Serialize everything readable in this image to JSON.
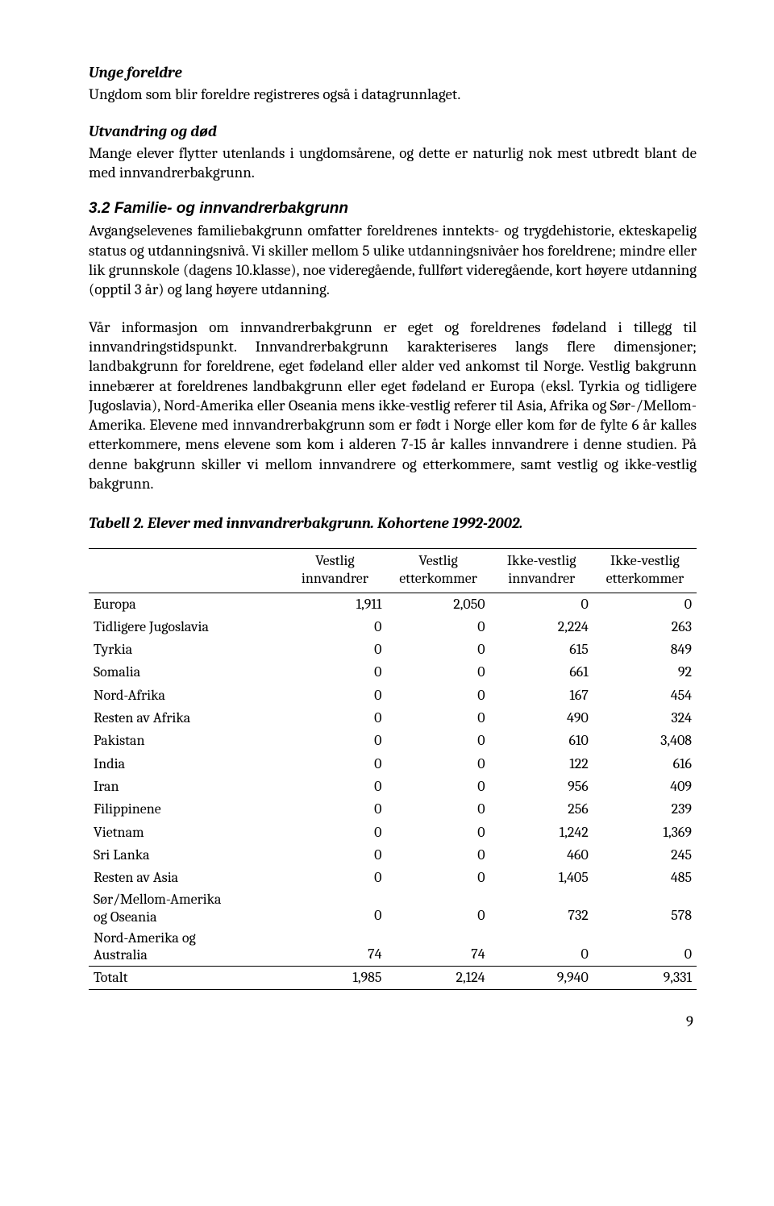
{
  "sections": {
    "h1": "Unge foreldre",
    "p1": "Ungdom som blir foreldre registreres også i datagrunnlaget.",
    "h2": "Utvandring og død",
    "p2": "Mange elever flytter utenlands i ungdomsårene, og dette er naturlig nok mest utbredt blant de med innvandrerbakgrunn.",
    "h3": "3.2 Familie- og innvandrerbakgrunn",
    "p3": "Avgangselevenes familiebakgrunn omfatter foreldrenes inntekts- og trygdehistorie, ekteskapelig status og utdanningsnivå. Vi skiller mellom 5 ulike utdanningsnivåer hos foreldrene; mindre eller lik grunnskole (dagens 10.klasse), noe videregående, fullført videregående, kort høyere utdanning (opptil 3 år) og lang høyere utdanning.",
    "p4": "Vår informasjon om innvandrerbakgrunn er eget og foreldrenes fødeland i tillegg til innvandringstidspunkt. Innvandrerbakgrunn karakteriseres langs flere dimensjoner; landbakgrunn for foreldrene, eget fødeland eller alder ved ankomst til Norge. Vestlig bakgrunn innebærer at foreldrenes landbakgrunn eller eget fødeland er Europa (eksl. Tyrkia og tidligere Jugoslavia), Nord-Amerika eller Oseania mens ikke-vestlig referer til Asia, Afrika og Sør-/Mellom-Amerika. Elevene med innvandrerbakgrunn som er født i Norge eller kom før de fylte 6 år kalles etterkommere, mens elevene som kom i alderen 7-15 år kalles innvandrere i denne studien.  På denne bakgrunn skiller vi mellom innvandrere og etterkommere, samt vestlig og ikke-vestlig bakgrunn."
  },
  "tableCaption": "Tabell 2. Elever med innvandrerbakgrunn. Kohortene 1992-2002.",
  "table": {
    "columns": [
      "",
      "Vestlig innvandrer",
      "Vestlig etterkommer",
      "Ikke-vestlig innvandrer",
      "Ikke-vestlig etterkommer"
    ],
    "rows": [
      [
        "Europa",
        "1,911",
        "2,050",
        "0",
        "0"
      ],
      [
        "Tidligere Jugoslavia",
        "0",
        "0",
        "2,224",
        "263"
      ],
      [
        "Tyrkia",
        "0",
        "0",
        "615",
        "849"
      ],
      [
        "Somalia",
        "0",
        "0",
        "661",
        "92"
      ],
      [
        "Nord-Afrika",
        "0",
        "0",
        "167",
        "454"
      ],
      [
        "Resten av Afrika",
        "0",
        "0",
        "490",
        "324"
      ],
      [
        "Pakistan",
        "0",
        "0",
        "610",
        "3,408"
      ],
      [
        "India",
        "0",
        "0",
        "122",
        "616"
      ],
      [
        "Iran",
        "0",
        "0",
        "956",
        "409"
      ],
      [
        "Filippinene",
        "0",
        "0",
        "256",
        "239"
      ],
      [
        "Vietnam",
        "0",
        "0",
        "1,242",
        "1,369"
      ],
      [
        "Sri Lanka",
        "0",
        "0",
        "460",
        "245"
      ],
      [
        "Resten av Asia",
        "0",
        "0",
        "1,405",
        "485"
      ],
      [
        "Sør/Mellom-Amerika og Oseania",
        "0",
        "0",
        "732",
        "578"
      ],
      [
        "Nord-Amerika og Australia",
        "74",
        "74",
        "0",
        "0"
      ]
    ],
    "total": [
      "Totalt",
      "1,985",
      "2,124",
      "9,940",
      "9,331"
    ]
  },
  "pageNumber": "9",
  "style": {
    "fontBody": "Cambria/Georgia serif",
    "fontHeadingArial": "Arial",
    "fontSizeBody": 19,
    "colorText": "#000000",
    "colorBackground": "#ffffff",
    "tableBorderColor": "#000000",
    "pageWidth": 960,
    "pageHeight": 1496
  }
}
